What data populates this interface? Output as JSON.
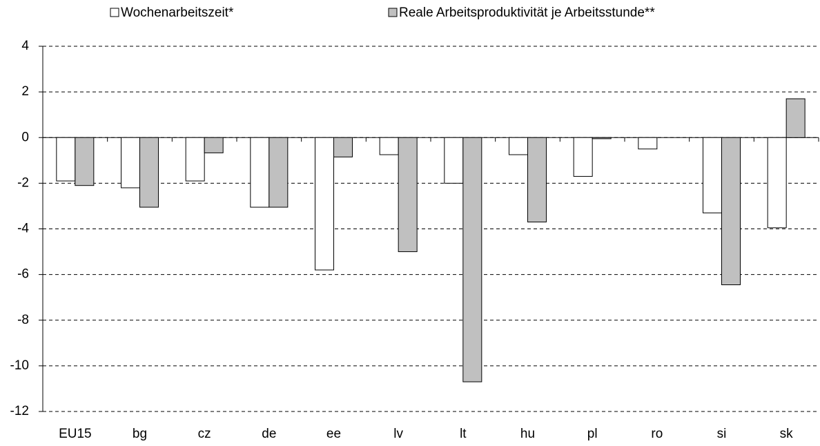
{
  "chart_data": {
    "type": "bar",
    "categories": [
      "EU15",
      "bg",
      "cz",
      "de",
      "ee",
      "lv",
      "lt",
      "hu",
      "pl",
      "ro",
      "si",
      "sk"
    ],
    "series": [
      {
        "name": "Wochenarbeitszeit*",
        "color": "#ffffff",
        "values": [
          -1.9,
          -2.2,
          -1.9,
          -3.05,
          -5.8,
          -0.75,
          -2.0,
          -0.75,
          -1.7,
          -0.5,
          -3.3,
          -3.95
        ]
      },
      {
        "name": "Reale Arbeitsproduktivität je Arbeitsstunde**",
        "color": "#c0c0c0",
        "values": [
          -2.1,
          -3.05,
          -0.67,
          -3.05,
          -0.85,
          -5.0,
          -10.7,
          -3.7,
          -0.05,
          null,
          -6.45,
          1.7
        ]
      }
    ],
    "ylim": [
      -12,
      4
    ],
    "yticks": [
      -12,
      -10,
      -8,
      -6,
      -4,
      -2,
      0,
      2,
      4
    ],
    "grid": true,
    "legend": "top"
  }
}
